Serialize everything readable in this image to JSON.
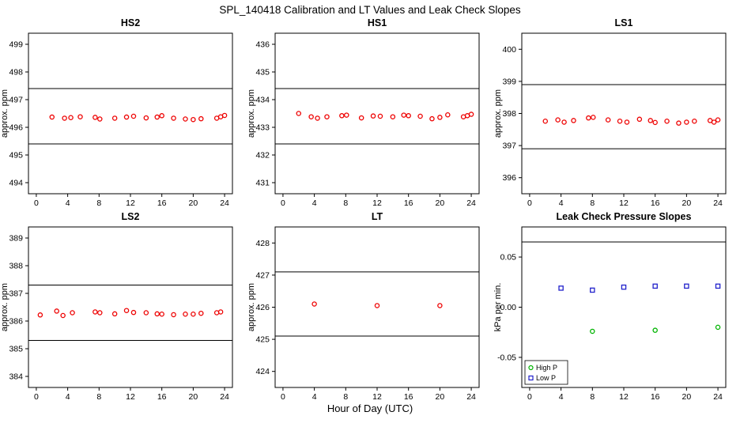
{
  "page_title": "SPL_140418  Calibration and LT Values and Leak Check Slopes",
  "xlabel": "Hour of Day (UTC)",
  "axis": {
    "xlim": [
      -1,
      25
    ],
    "x_ticks": [
      0,
      4,
      8,
      12,
      16,
      20,
      24
    ]
  },
  "chart_data": [
    {
      "type": "scatter",
      "title": "HS2",
      "ylabel": "approx. ppm",
      "ylim": [
        493.6,
        499.4
      ],
      "yticks": [
        494,
        495,
        496,
        497,
        498,
        499
      ],
      "hlines": [
        495.4,
        497.4
      ],
      "series": [
        {
          "name": "calibration",
          "color": "#ee0000",
          "marker": "circle",
          "x": [
            2,
            3.6,
            4.4,
            5.6,
            7.5,
            8.1,
            10,
            11.5,
            12.4,
            14,
            15.4,
            16,
            17.5,
            19,
            20,
            21,
            23,
            23.5,
            24
          ],
          "y": [
            496.37,
            496.33,
            496.35,
            496.38,
            496.36,
            496.3,
            496.33,
            496.37,
            496.4,
            496.34,
            496.37,
            496.42,
            496.33,
            496.3,
            496.28,
            496.31,
            496.33,
            496.38,
            496.43
          ]
        }
      ]
    },
    {
      "type": "scatter",
      "title": "HS1",
      "ylabel": "approx. ppm",
      "ylim": [
        430.6,
        436.4
      ],
      "yticks": [
        431,
        432,
        433,
        434,
        435,
        436
      ],
      "hlines": [
        432.4,
        434.4
      ],
      "series": [
        {
          "name": "calibration",
          "color": "#ee0000",
          "marker": "circle",
          "x": [
            2,
            3.6,
            4.4,
            5.6,
            7.5,
            8.1,
            10,
            11.5,
            12.4,
            14,
            15.4,
            16,
            17.5,
            19,
            20,
            21,
            23,
            23.5,
            24
          ],
          "y": [
            433.5,
            433.38,
            433.33,
            433.38,
            433.42,
            433.44,
            433.34,
            433.41,
            433.4,
            433.38,
            433.44,
            433.42,
            433.4,
            433.31,
            433.36,
            433.45,
            433.38,
            433.42,
            433.47
          ]
        }
      ]
    },
    {
      "type": "scatter",
      "title": "LS1",
      "ylabel": "approx. ppm",
      "ylim": [
        395.5,
        400.5
      ],
      "yticks": [
        396,
        397,
        398,
        399,
        400
      ],
      "hlines": [
        396.9,
        398.9
      ],
      "series": [
        {
          "name": "calibration",
          "color": "#ee0000",
          "marker": "circle",
          "x": [
            2,
            3.6,
            4.4,
            5.6,
            7.5,
            8.1,
            10,
            11.5,
            12.4,
            14,
            15.4,
            16,
            17.5,
            19,
            20,
            21,
            23,
            23.5,
            24
          ],
          "y": [
            397.76,
            397.8,
            397.73,
            397.78,
            397.86,
            397.88,
            397.8,
            397.76,
            397.73,
            397.82,
            397.78,
            397.72,
            397.76,
            397.7,
            397.73,
            397.76,
            397.78,
            397.73,
            397.8
          ]
        }
      ]
    },
    {
      "type": "scatter",
      "title": "LS2",
      "ylabel": "approx. ppm",
      "ylim": [
        383.6,
        389.4
      ],
      "yticks": [
        384,
        385,
        386,
        387,
        388,
        389
      ],
      "hlines": [
        385.3,
        387.3
      ],
      "series": [
        {
          "name": "calibration",
          "color": "#ee0000",
          "marker": "circle",
          "x": [
            0.5,
            2.6,
            3.4,
            4.6,
            7.5,
            8.1,
            10,
            11.5,
            12.4,
            14,
            15.4,
            16,
            17.5,
            19,
            20,
            21,
            23,
            23.5
          ],
          "y": [
            386.22,
            386.36,
            386.2,
            386.3,
            386.33,
            386.3,
            386.26,
            386.38,
            386.31,
            386.3,
            386.26,
            386.25,
            386.23,
            386.25,
            386.25,
            386.28,
            386.3,
            386.33
          ]
        }
      ]
    },
    {
      "type": "scatter",
      "title": "LT",
      "ylabel": "approx. ppm",
      "ylim": [
        423.5,
        428.5
      ],
      "yticks": [
        424,
        425,
        426,
        427,
        428
      ],
      "hlines": [
        425.1,
        427.1
      ],
      "series": [
        {
          "name": "LT",
          "color": "#ee0000",
          "marker": "circle",
          "x": [
            4,
            12,
            20
          ],
          "y": [
            426.1,
            426.05,
            426.05
          ]
        }
      ]
    },
    {
      "type": "scatter",
      "title": "Leak Check Pressure Slopes",
      "ylabel": "kPa per min.",
      "ylim": [
        -0.08,
        0.08
      ],
      "yticks": [
        -0.05,
        0,
        0.05
      ],
      "ytick_labels": [
        "-0.05",
        "0.00",
        "0.05"
      ],
      "hlines": [
        0.065
      ],
      "legend": {
        "position": "bottom-left"
      },
      "series": [
        {
          "name": "High P",
          "color": "#00b400",
          "marker": "circle",
          "x": [
            8,
            16,
            24
          ],
          "y": [
            -0.024,
            -0.023,
            -0.02
          ]
        },
        {
          "name": "Low P",
          "color": "#2222cc",
          "marker": "square",
          "x": [
            4,
            8,
            12,
            16,
            20,
            24
          ],
          "y": [
            0.019,
            0.017,
            0.02,
            0.021,
            0.021,
            0.021
          ]
        }
      ]
    }
  ]
}
